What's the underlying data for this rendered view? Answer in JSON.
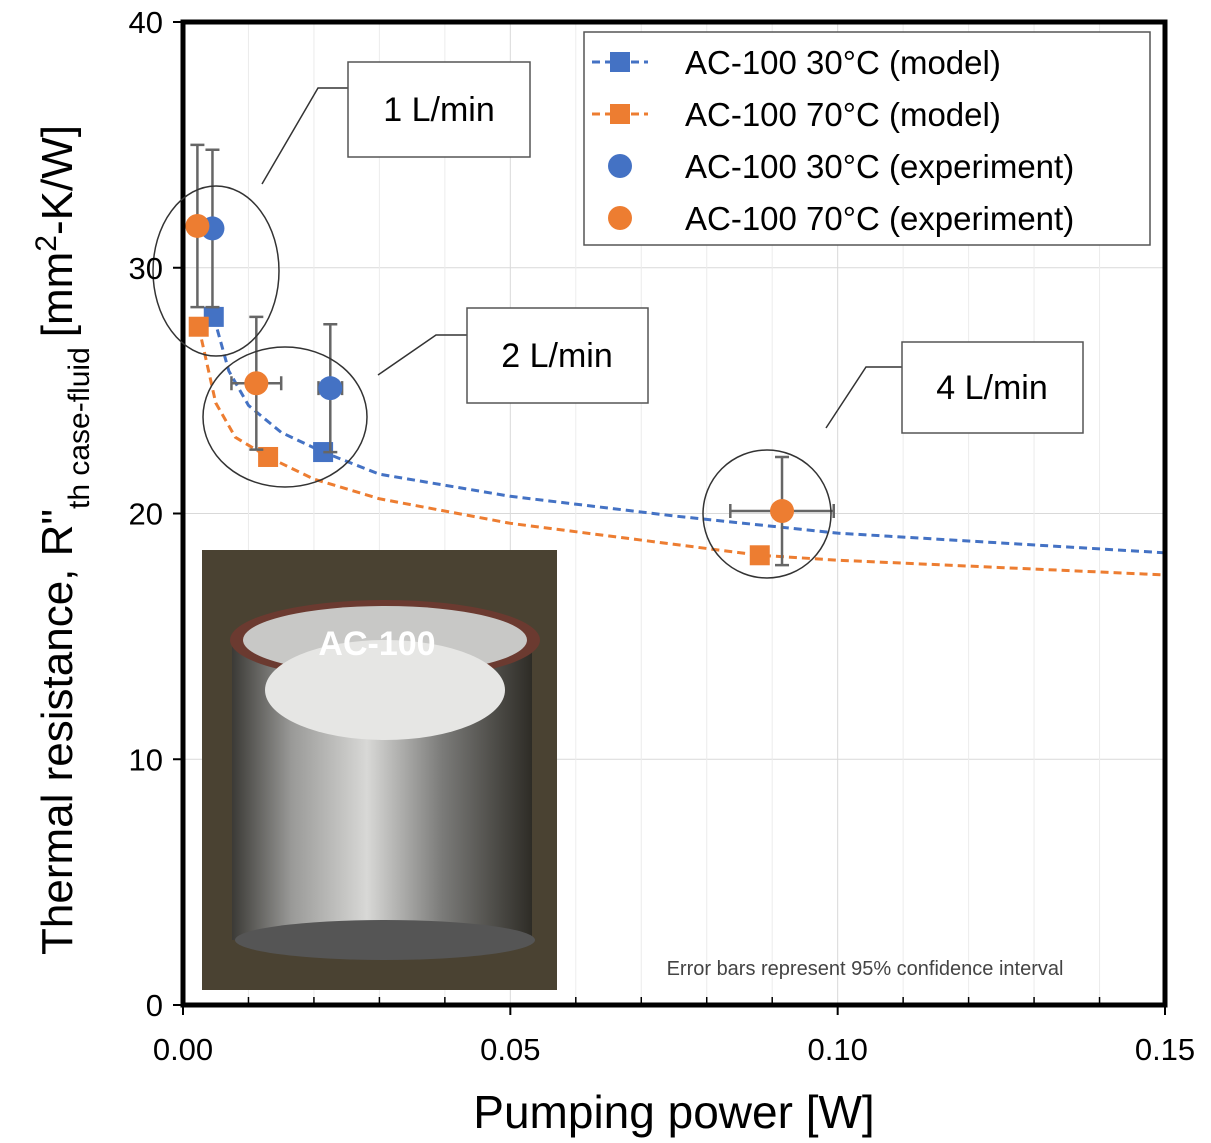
{
  "chart_data": {
    "type": "scatter",
    "x_label": "Pumping power [W]",
    "y_label": {
      "main": "Thermal resistance, R\"",
      "subscript": "th case-fluid",
      "unit_before": "[mm",
      "superscript": "2",
      "unit_after": "-K/W]"
    },
    "xlim": [
      0,
      0.15
    ],
    "ylim": [
      0,
      40
    ],
    "xticks": [
      {
        "value": 0,
        "label": "0.00"
      },
      {
        "value": 0.05,
        "label": "0.05"
      },
      {
        "value": 0.1,
        "label": "0.10"
      },
      {
        "value": 0.15,
        "label": "0.15"
      }
    ],
    "xminor": [
      0.01,
      0.02,
      0.03,
      0.04,
      0.06,
      0.07,
      0.08,
      0.09,
      0.11,
      0.12,
      0.13,
      0.14
    ],
    "yticks": [
      0,
      10,
      20,
      30,
      40
    ],
    "grid": true,
    "legend": "upper right",
    "series": [
      {
        "name": "AC-100 30°C (model)",
        "color": "#4472c4",
        "marker": "square",
        "dashed": true,
        "curve_x": [
          0.0047,
          0.007,
          0.01,
          0.015,
          0.0214,
          0.03,
          0.05,
          0.075,
          0.1,
          0.125,
          0.15
        ],
        "curve_values": [
          28.0,
          25.8,
          24.4,
          23.3,
          22.5,
          21.6,
          20.7,
          19.9,
          19.2,
          18.8,
          18.4
        ],
        "x": [
          0.0047,
          0.0214
        ],
        "values": [
          28.0,
          22.5
        ]
      },
      {
        "name": "AC-100 70°C (model)",
        "color": "#ed7d31",
        "marker": "square",
        "dashed": true,
        "curve_x": [
          0.0024,
          0.005,
          0.008,
          0.013,
          0.02,
          0.03,
          0.05,
          0.0881,
          0.1,
          0.125,
          0.15
        ],
        "curve_values": [
          27.6,
          24.5,
          23.1,
          22.3,
          21.4,
          20.6,
          19.6,
          18.3,
          18.1,
          17.8,
          17.5
        ],
        "x": [
          0.0024,
          0.013,
          0.0881
        ],
        "values": [
          27.6,
          22.3,
          18.3
        ]
      },
      {
        "name": "AC-100 30°C (experiment)",
        "color": "#4472c4",
        "marker": "circle",
        "x": [
          0.0045,
          0.0225
        ],
        "values": [
          31.6,
          25.1
        ],
        "xerr": [
          0.0009,
          0.0018
        ],
        "yerr": [
          3.2,
          2.6
        ]
      },
      {
        "name": "AC-100 70°C (experiment)",
        "color": "#ed7d31",
        "marker": "circle",
        "x": [
          0.0022,
          0.0112,
          0.0915
        ],
        "values": [
          31.7,
          25.3,
          20.1
        ],
        "xerr": [
          0.0009,
          0.0038,
          0.0079
        ],
        "yerr": [
          3.3,
          2.7,
          2.2
        ]
      }
    ],
    "annotations": [
      "1 L/min",
      "2 L/min",
      "4 L/min"
    ],
    "inset_label": "AC-100",
    "note": "Error bars represent 95% confidence interval"
  }
}
